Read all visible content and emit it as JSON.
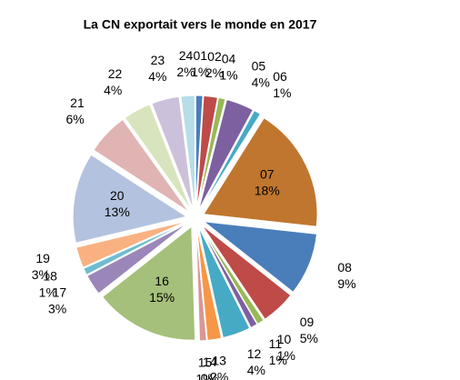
{
  "chart_data": {
    "type": "pie",
    "title": "La CN exportait vers le monde en 2017",
    "categories": [
      "01",
      "02",
      "04",
      "05",
      "06",
      "07",
      "08",
      "09",
      "10",
      "11",
      "12",
      "13",
      "14",
      "15",
      "16",
      "17",
      "18",
      "19",
      "20",
      "21",
      "22",
      "23",
      "24"
    ],
    "values": [
      1,
      2,
      1,
      4,
      1,
      18,
      9,
      5,
      1,
      1,
      4,
      2,
      0,
      1,
      15,
      3,
      1,
      3,
      13,
      6,
      4,
      4,
      2
    ],
    "value_labels": [
      "1%",
      "2%",
      "1%",
      "4%",
      "1%",
      "18%",
      "9%",
      "5%",
      "1%",
      "1%",
      "4%",
      "2%",
      "0%",
      "1%",
      "15%",
      "3%",
      "1%",
      "3%",
      "13%",
      "6%",
      "4%",
      "4%",
      "2%"
    ],
    "colors": [
      "#4a7ebb",
      "#be4b48",
      "#98b954",
      "#7d60a0",
      "#46aac5",
      "#c0762f",
      "#4a7ebb",
      "#be4b48",
      "#98b954",
      "#7d60a0",
      "#46aac5",
      "#f79646",
      "#2c4d75",
      "#d99694",
      "#a5c07a",
      "#9a86b8",
      "#6fbcd1",
      "#f9b182",
      "#b3c2df",
      "#e0b4b3",
      "#d7e4bd",
      "#ccc1da",
      "#b7dde8"
    ]
  }
}
